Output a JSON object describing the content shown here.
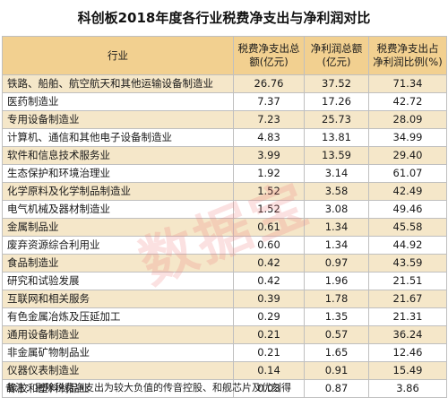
{
  "title": "科创板2018年度各行业税费净支出与净利润对比",
  "headers": [
    "行业",
    "税费净支出总额(亿元)",
    "净利润总额(亿元)",
    "税费净支出占净利润比例(%)"
  ],
  "rows": [
    [
      "铁路、船舶、航空航天和其他运输设备制造业",
      "26.76",
      "37.52",
      "71.34"
    ],
    [
      "医药制造业",
      "7.37",
      "17.26",
      "42.72"
    ],
    [
      "专用设备制造业",
      "7.23",
      "25.73",
      "28.09"
    ],
    [
      "计算机、通信和其他电子设备制造业",
      "4.83",
      "13.81",
      "34.99"
    ],
    [
      "软件和信息技术服务业",
      "3.99",
      "13.59",
      "29.40"
    ],
    [
      "生态保护和环境治理业",
      "1.92",
      "3.14",
      "61.07"
    ],
    [
      "化学原料及化学制品制造业",
      "1.52",
      "3.58",
      "42.49"
    ],
    [
      "电气机械及器材制造业",
      "1.52",
      "3.08",
      "49.46"
    ],
    [
      "金属制品业",
      "0.61",
      "1.34",
      "45.58"
    ],
    [
      "废弃资源综合利用业",
      "0.60",
      "1.34",
      "44.92"
    ],
    [
      "食品制造业",
      "0.42",
      "0.97",
      "43.59"
    ],
    [
      "研究和试验发展",
      "0.42",
      "1.96",
      "21.51"
    ],
    [
      "互联网和相关服务",
      "0.39",
      "1.78",
      "21.67"
    ],
    [
      "有色金属冶炼及压延加工",
      "0.29",
      "1.35",
      "21.31"
    ],
    [
      "通用设备制造业",
      "0.21",
      "0.57",
      "36.24"
    ],
    [
      "非金属矿物制品业",
      "0.21",
      "1.65",
      "12.46"
    ],
    [
      "仪器仪表制造业",
      "0.14",
      "0.91",
      "15.49"
    ],
    [
      "橡胶和塑料制品业",
      "0.03",
      "0.87",
      "3.86"
    ]
  ],
  "note": "备注：剔除税费净支出为较大负值的传音控股、和舰芯片及优刻得",
  "watermark": "数据宝",
  "colors": {
    "header_bg": "#f2d090",
    "odd_row_bg": "#f5e7c9",
    "even_row_bg": "#ffffff"
  }
}
